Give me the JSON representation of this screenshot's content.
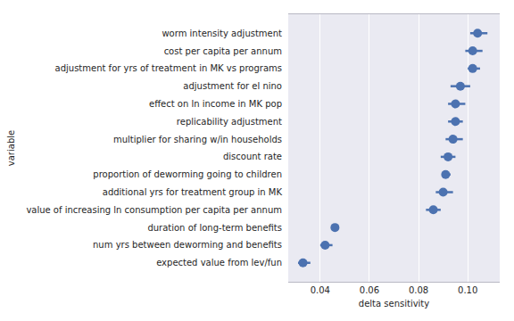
{
  "chart_data": {
    "type": "pointplot",
    "orientation": "horizontal",
    "x_label": "delta sensitivity",
    "y_label": "variable",
    "categories": [
      "worm intensity adjustment",
      "cost per capita per annum",
      "adjustment for yrs of treatment in MK vs programs",
      "adjustment for el nino",
      "effect on ln income in MK pop",
      "replicability adjustment",
      "multiplier for sharing w/in households",
      "discount rate",
      "proportion of deworming going to children",
      "additional yrs for treatment group in MK",
      "value of increasing ln consumption per capita per annum",
      "duration of long-term benefits",
      "num yrs between deworming and benefits",
      "expected value from lev/fun"
    ],
    "values": [
      0.104,
      0.102,
      0.102,
      0.097,
      0.095,
      0.095,
      0.094,
      0.092,
      0.091,
      0.09,
      0.086,
      0.046,
      0.042,
      0.033
    ],
    "ci_low": [
      0.101,
      0.099,
      0.1,
      0.093,
      0.092,
      0.092,
      0.091,
      0.089,
      0.09,
      0.087,
      0.083,
      0.045,
      0.04,
      0.031
    ],
    "ci_high": [
      0.108,
      0.106,
      0.105,
      0.101,
      0.099,
      0.098,
      0.098,
      0.095,
      0.093,
      0.094,
      0.089,
      0.047,
      0.045,
      0.036
    ],
    "color": "#4c72b0",
    "marker": "circle",
    "xlim": [
      0.027,
      0.113
    ],
    "xticks": [
      0.04,
      0.06,
      0.08,
      0.1
    ],
    "grid": "x"
  }
}
